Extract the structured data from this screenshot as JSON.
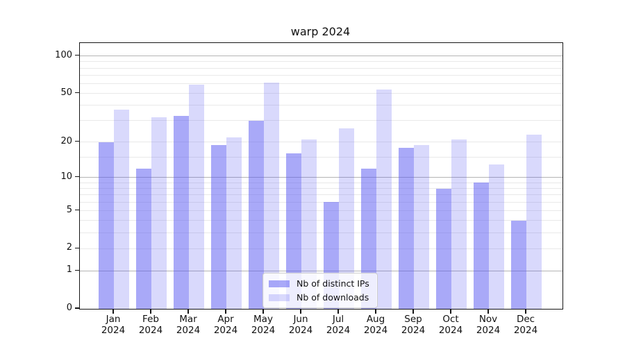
{
  "title": "warp 2024",
  "chart_data": {
    "type": "bar",
    "title": "warp 2024",
    "categories": [
      {
        "month": "Jan",
        "year": "2024"
      },
      {
        "month": "Feb",
        "year": "2024"
      },
      {
        "month": "Mar",
        "year": "2024"
      },
      {
        "month": "Apr",
        "year": "2024"
      },
      {
        "month": "May",
        "year": "2024"
      },
      {
        "month": "Jun",
        "year": "2024"
      },
      {
        "month": "Jul",
        "year": "2024"
      },
      {
        "month": "Aug",
        "year": "2024"
      },
      {
        "month": "Sep",
        "year": "2024"
      },
      {
        "month": "Oct",
        "year": "2024"
      },
      {
        "month": "Nov",
        "year": "2024"
      },
      {
        "month": "Dec",
        "year": "2024"
      }
    ],
    "series": [
      {
        "name": "Nb of distinct IPs",
        "color": "rgba(84,84,242,0.5)",
        "values": [
          20,
          12,
          33,
          19,
          30,
          16,
          6,
          12,
          18,
          8,
          9,
          4
        ]
      },
      {
        "name": "Nb of downloads",
        "color": "rgba(84,84,242,0.22)",
        "values": [
          37,
          32,
          59,
          22,
          61,
          21,
          26,
          54,
          19,
          21,
          13,
          23
        ]
      }
    ],
    "yscale": "log1p",
    "ylim": [
      0,
      126
    ],
    "yticks": [
      100,
      50,
      20,
      10,
      5,
      2,
      1,
      0
    ],
    "major_gridlines": [
      1,
      10,
      100
    ],
    "minor_gridlines": [
      2,
      3,
      4,
      5,
      6,
      7,
      8,
      9,
      15,
      20,
      30,
      40,
      50,
      60,
      70,
      80,
      90
    ],
    "grid": true,
    "legend_position": "lower center",
    "xlabel": "",
    "ylabel": ""
  },
  "colors": {
    "major_grid": "#b4b4b4",
    "minor_grid": "#e9e9e9",
    "axis": "#151515",
    "text": "#111111",
    "bar_base": "#5454f2"
  }
}
